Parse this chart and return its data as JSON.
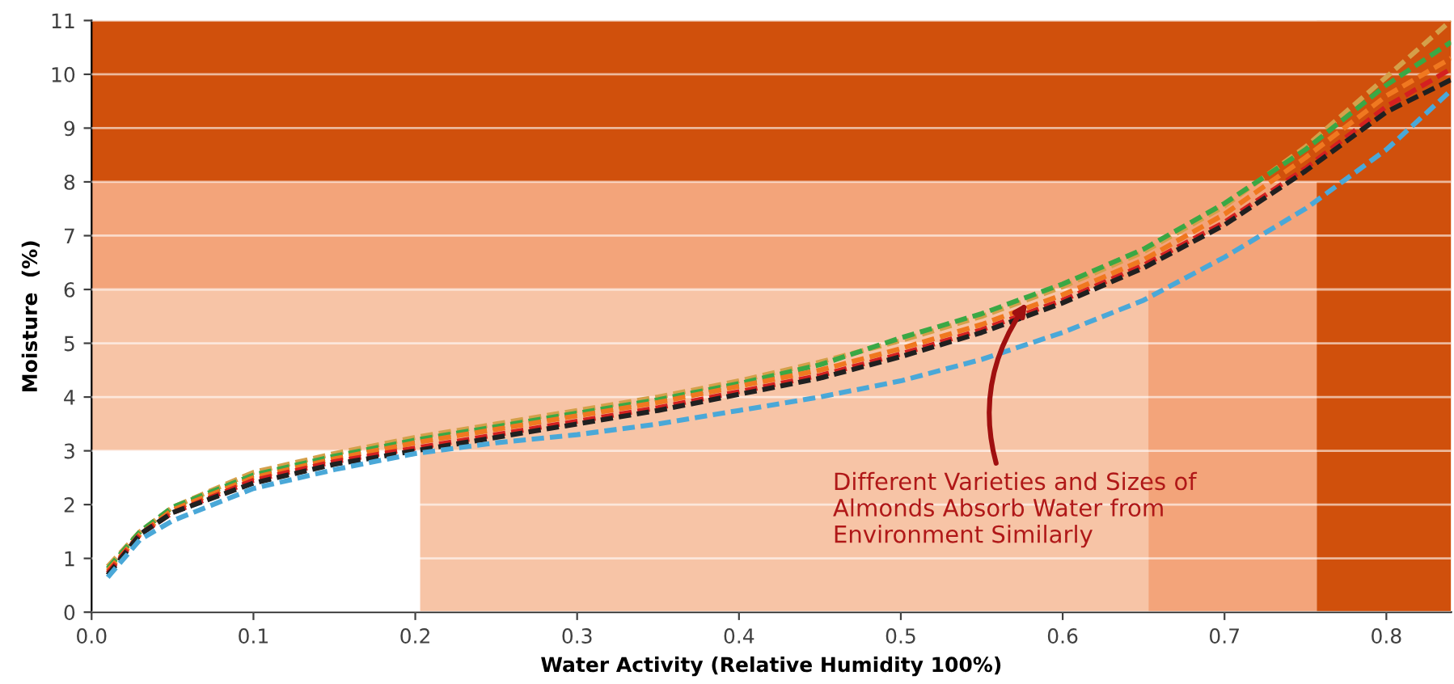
{
  "chart_data": {
    "type": "line",
    "xlabel": "Water Activity (Relative Humidity 100%)",
    "ylabel": "Moisture  (%)",
    "xlim": [
      0,
      0.84
    ],
    "ylim": [
      0,
      11
    ],
    "xticks": [
      {
        "value": 0,
        "label": "0.0"
      },
      {
        "value": 0.1,
        "label": "0.1"
      },
      {
        "value": 0.2,
        "label": "0.2"
      },
      {
        "value": 0.3,
        "label": "0.3"
      },
      {
        "value": 0.4,
        "label": "0.4"
      },
      {
        "value": 0.5,
        "label": "0.5"
      },
      {
        "value": 0.6,
        "label": "0.6"
      },
      {
        "value": 0.7,
        "label": "0.7"
      },
      {
        "value": 0.8,
        "label": "0.8"
      }
    ],
    "yticks": [
      0,
      1,
      2,
      3,
      4,
      5,
      6,
      7,
      8,
      9,
      10,
      11
    ],
    "grid": "y",
    "marker": "none",
    "line_style": "dashed",
    "x": [
      0.01,
      0.03,
      0.05,
      0.1,
      0.15,
      0.2,
      0.25,
      0.3,
      0.35,
      0.4,
      0.45,
      0.5,
      0.55,
      0.6,
      0.65,
      0.7,
      0.75,
      0.8,
      0.84
    ],
    "series": [
      {
        "color": "#d4a04a",
        "values": [
          0.85,
          1.5,
          1.95,
          2.6,
          2.95,
          3.25,
          3.5,
          3.75,
          4.0,
          4.3,
          4.65,
          5.05,
          5.5,
          6.05,
          6.7,
          7.55,
          8.65,
          9.95,
          11.0
        ]
      },
      {
        "color": "#3aa845",
        "values": [
          0.81,
          1.5,
          1.95,
          2.55,
          2.9,
          3.2,
          3.45,
          3.7,
          3.95,
          4.25,
          4.6,
          5.1,
          5.55,
          6.1,
          6.75,
          7.6,
          8.6,
          9.8,
          10.6
        ]
      },
      {
        "color": "#f07820",
        "values": [
          0.77,
          1.45,
          1.9,
          2.5,
          2.85,
          3.15,
          3.4,
          3.65,
          3.9,
          4.2,
          4.5,
          4.9,
          5.35,
          5.9,
          6.55,
          7.4,
          8.45,
          9.6,
          10.3
        ]
      },
      {
        "color": "#d42020",
        "values": [
          0.73,
          1.45,
          1.85,
          2.45,
          2.8,
          3.05,
          3.3,
          3.55,
          3.8,
          4.1,
          4.4,
          4.8,
          5.25,
          5.8,
          6.45,
          7.25,
          8.25,
          9.4,
          10.1
        ]
      },
      {
        "color": "#202020",
        "values": [
          0.69,
          1.45,
          1.85,
          2.4,
          2.75,
          3.0,
          3.25,
          3.5,
          3.75,
          4.05,
          4.35,
          4.75,
          5.2,
          5.75,
          6.4,
          7.2,
          8.2,
          9.3,
          9.9
        ]
      },
      {
        "color": "#4aa8d8",
        "values": [
          0.65,
          1.35,
          1.7,
          2.3,
          2.65,
          2.95,
          3.15,
          3.3,
          3.5,
          3.75,
          4.0,
          4.3,
          4.7,
          5.2,
          5.8,
          6.6,
          7.5,
          8.6,
          9.7
        ]
      }
    ],
    "bands": [
      {
        "axis": "x",
        "from": 0.203,
        "to": 0.653,
        "color": "#f7c4a6"
      },
      {
        "axis": "y",
        "from": 3,
        "to": 6,
        "color": "#f7c4a6"
      },
      {
        "axis": "x",
        "from": 0.653,
        "to": 0.757,
        "color": "#f3a47a"
      },
      {
        "axis": "y",
        "from": 6,
        "to": 8,
        "color": "#f3a47a"
      },
      {
        "axis": "x",
        "from": 0.757,
        "to": 0.84,
        "color": "#d0500c"
      },
      {
        "axis": "y",
        "from": 8,
        "to": 11,
        "color": "#d0500c"
      }
    ],
    "annotations": [
      {
        "text": "Different Varieties and Sizes of\nAlmonds Absorb Water from\nEnvironment Similarly",
        "x": 0.578,
        "y": 5.75
      }
    ]
  }
}
